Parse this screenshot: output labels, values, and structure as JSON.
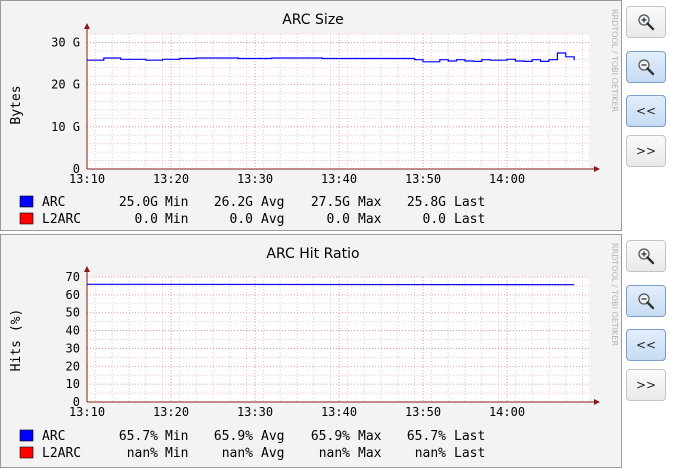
{
  "watermark": "RRDTOOL / TOBI OETIKER",
  "colors": {
    "arc": "#0000ff",
    "l2arc": "#ff0000",
    "grid_minor": "#ffb3b3",
    "grid_major": "#e08080",
    "axis": "#8b1a1a"
  },
  "graphs": [
    {
      "title": "ARC Size",
      "ylabel": "Bytes",
      "legend": [
        {
          "name": "ARC",
          "min": "25.0G",
          "avg": "26.2G",
          "max": "27.5G",
          "last": "25.8G"
        },
        {
          "name": "L2ARC",
          "min": "0.0",
          "avg": "0.0",
          "max": "0.0",
          "last": "0.0"
        }
      ],
      "stat_labels": {
        "min": "Min",
        "avg": "Avg",
        "max": "Max",
        "last": "Last"
      }
    },
    {
      "title": "ARC Hit Ratio",
      "ylabel": "Hits (%)",
      "legend": [
        {
          "name": "ARC",
          "min": "65.7%",
          "avg": "65.9%",
          "max": "65.9%",
          "last": "65.7%"
        },
        {
          "name": "L2ARC",
          "min": "nan%",
          "avg": "nan%",
          "max": "nan%",
          "last": "nan%"
        }
      ],
      "stat_labels": {
        "min": "Min",
        "avg": "Avg",
        "max": "Max",
        "last": "Last"
      }
    }
  ],
  "buttons": {
    "zoom_in": "zoom-in",
    "zoom_out": "zoom-out",
    "prev": "<<",
    "next": ">>"
  },
  "chart_data": [
    {
      "type": "line",
      "title": "ARC Size",
      "ylabel": "Bytes",
      "xlabel": "",
      "x_ticks": [
        "13:10",
        "13:20",
        "13:30",
        "13:40",
        "13:50",
        "14:00"
      ],
      "y_ticks": [
        "0",
        "10 G",
        "20 G",
        "30 G"
      ],
      "ylim": [
        0,
        32
      ],
      "y_unit": "G",
      "grid": true,
      "legend_position": "bottom",
      "series": [
        {
          "name": "ARC",
          "color": "#0000ff",
          "x": [
            "13:10",
            "13:11",
            "13:12",
            "13:13",
            "13:14",
            "13:15",
            "13:16",
            "13:17",
            "13:18",
            "13:19",
            "13:20",
            "13:21",
            "13:22",
            "13:23",
            "13:24",
            "13:25",
            "13:26",
            "13:27",
            "13:28",
            "13:29",
            "13:30",
            "13:31",
            "13:32",
            "13:33",
            "13:34",
            "13:35",
            "13:36",
            "13:37",
            "13:38",
            "13:39",
            "13:40",
            "13:41",
            "13:42",
            "13:43",
            "13:44",
            "13:45",
            "13:46",
            "13:47",
            "13:48",
            "13:49",
            "13:50",
            "13:51",
            "13:52",
            "13:53",
            "13:54",
            "13:55",
            "13:56",
            "13:57",
            "13:58",
            "13:59",
            "14:00",
            "14:01",
            "14:02",
            "14:03",
            "14:04",
            "14:05",
            "14:06",
            "14:07",
            "14:08"
          ],
          "values": [
            25.8,
            25.8,
            26.3,
            26.3,
            26.0,
            26.0,
            26.0,
            25.8,
            25.8,
            26.0,
            26.0,
            26.2,
            26.2,
            26.3,
            26.3,
            26.3,
            26.3,
            26.3,
            26.2,
            26.2,
            26.2,
            26.2,
            26.3,
            26.3,
            26.3,
            26.3,
            26.3,
            26.3,
            26.2,
            26.2,
            26.2,
            26.2,
            26.2,
            26.2,
            26.2,
            26.2,
            26.2,
            26.2,
            26.2,
            25.9,
            25.4,
            25.4,
            25.9,
            25.6,
            25.9,
            25.6,
            25.5,
            25.9,
            25.8,
            25.8,
            26.0,
            25.6,
            25.5,
            25.9,
            25.5,
            25.9,
            27.5,
            26.6,
            25.8
          ]
        },
        {
          "name": "L2ARC",
          "color": "#ff0000",
          "x": [
            "13:10",
            "14:08"
          ],
          "values": [
            0,
            0
          ]
        }
      ]
    },
    {
      "type": "line",
      "title": "ARC Hit Ratio",
      "ylabel": "Hits (%)",
      "xlabel": "",
      "x_ticks": [
        "13:10",
        "13:20",
        "13:30",
        "13:40",
        "13:50",
        "14:00"
      ],
      "y_ticks": [
        "0",
        "10",
        "20",
        "30",
        "40",
        "50",
        "60",
        "70"
      ],
      "ylim": [
        0,
        70
      ],
      "grid": true,
      "legend_position": "bottom",
      "series": [
        {
          "name": "ARC",
          "color": "#0000ff",
          "x": [
            "13:10",
            "14:08"
          ],
          "values": [
            65.9,
            65.7
          ]
        },
        {
          "name": "L2ARC",
          "color": "#ff0000",
          "x": [],
          "values": []
        }
      ]
    }
  ]
}
